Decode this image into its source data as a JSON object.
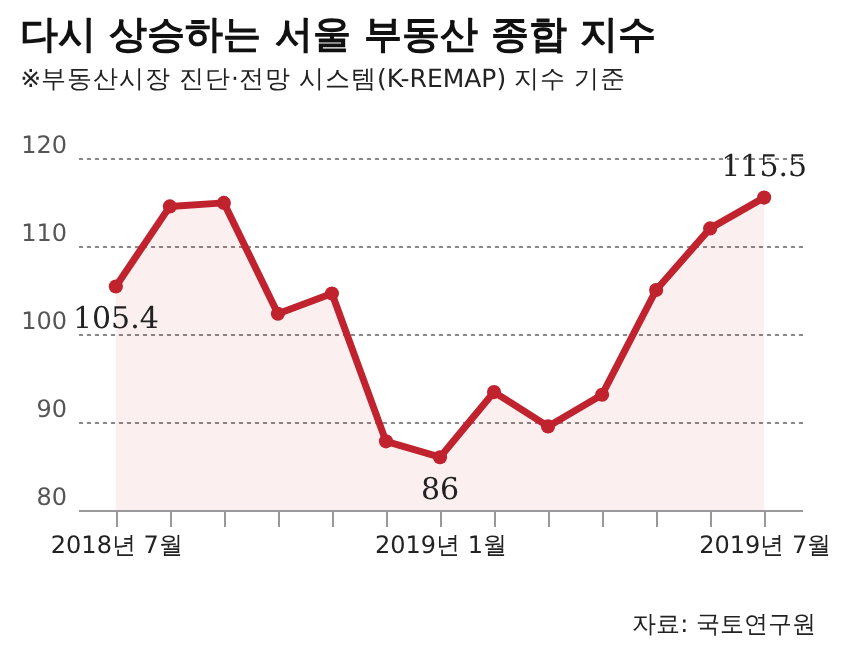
{
  "chart_data": {
    "type": "area",
    "title": "다시 상승하는 서울 부동산 종합 지수",
    "subtitle": "※부동산시장 진단·전망 시스템(K-REMAP) 지수 기준",
    "categories": [
      "2018년 7월",
      null,
      null,
      null,
      null,
      null,
      "2019년 1월",
      null,
      null,
      null,
      null,
      null,
      "2019년 7월"
    ],
    "series": [
      {
        "color": "#c0222e",
        "values": [
          105.4,
          114.5,
          114.9,
          102.3,
          104.6,
          87.8,
          86,
          93.4,
          89.5,
          93.1,
          105.0,
          112.0,
          115.5
        ],
        "value_labels": [
          "105.4",
          null,
          null,
          null,
          null,
          null,
          "86",
          null,
          null,
          null,
          null,
          null,
          "115.5"
        ]
      }
    ],
    "ylim": [
      80,
      120
    ],
    "yticks": [
      80,
      90,
      100,
      110,
      120
    ],
    "grid": "y",
    "marker": "circle",
    "line_style": "solid",
    "annotations": [
      "자료: 국토연구원"
    ]
  }
}
